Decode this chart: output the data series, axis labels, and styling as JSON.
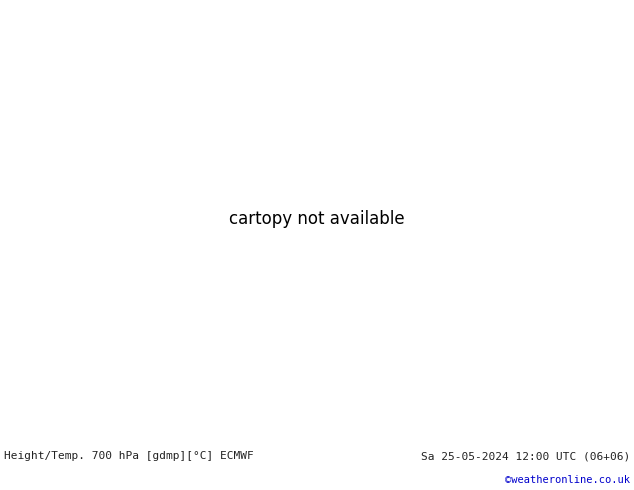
{
  "title_left": "Height/Temp. 700 hPa [gdmp][°C] ECMWF",
  "title_right": "Sa 25-05-2024 12:00 UTC (06+06)",
  "credit": "©weatheronline.co.uk",
  "credit_color": "#0000cc",
  "bg_color": "#ffffff",
  "map_land_color": "#b0e0a0",
  "map_ocean_color": "#d8d8d8",
  "map_border_color": "#888888",
  "bottom_bar_color": "#c8c8c8",
  "bottom_text_color": "#222222",
  "contour_black_color": "#000000",
  "contour_red_color": "#dd0000",
  "contour_pink_color": "#dd00dd",
  "contour_orange_color": "#ff8800",
  "fig_width": 6.34,
  "fig_height": 4.9,
  "dpi": 100,
  "label_fontsize": 8.0,
  "credit_fontsize": 7.5,
  "lon_min": 85,
  "lon_max": 175,
  "lat_min": -10,
  "lat_max": 55
}
